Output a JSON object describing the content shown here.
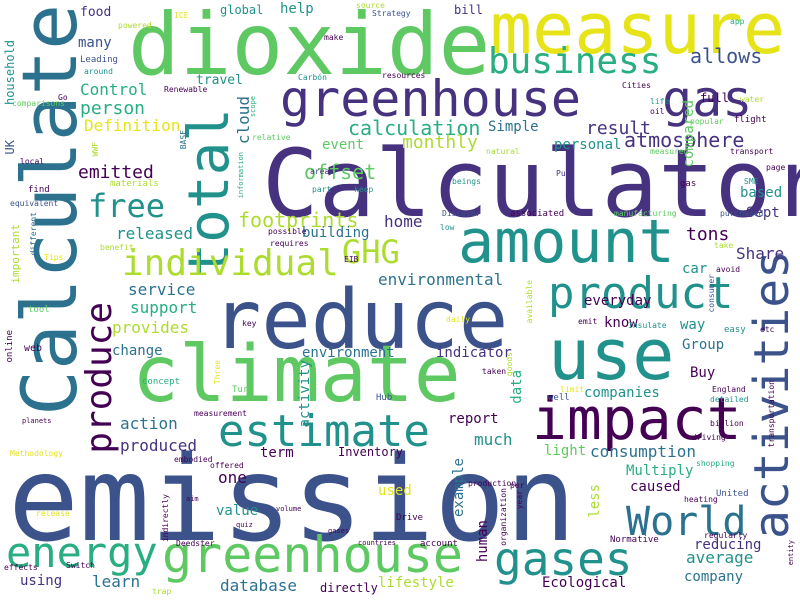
{
  "palette": {
    "navy": "#3b528b",
    "indigo": "#46327e",
    "purple": "#440154",
    "teal": "#2c728e",
    "cyan": "#21918c",
    "sea": "#28ae80",
    "green": "#5ec962",
    "lime": "#addc30",
    "yellow": "#e6e419"
  },
  "words": [
    "emission",
    "Calculator",
    "Calculate",
    "dioxide",
    "measure",
    "reduce",
    "climate",
    "greenhouse",
    "gas",
    "amount",
    "use",
    "impact",
    "total",
    "product",
    "activities",
    "estimate",
    "individual",
    "business",
    "energy",
    "greenhouse",
    "gases",
    "World",
    "produce",
    "GHG",
    "free",
    "calculation",
    "offset",
    "allows",
    "atmosphere",
    "footprints",
    "monthly",
    "result",
    "tons",
    "emitted",
    "person",
    "Control",
    "Definition",
    "service",
    "support",
    "provides",
    "released",
    "home",
    "environmental",
    "Share",
    "everyday",
    "car",
    "personal",
    "compared",
    "Simple",
    "event",
    "based",
    "Sept",
    "cloud",
    "building",
    "know",
    "way",
    "Group",
    "indicator",
    "environment",
    "change",
    "action",
    "produced",
    "term",
    "one",
    "value",
    "used",
    "learn",
    "using",
    "database",
    "lifestyle",
    "company",
    "average",
    "reducing",
    "Multiply",
    "caused",
    "consumption",
    "light",
    "less",
    "much",
    "report",
    "example",
    "human",
    "data",
    "activity",
    "Ecological",
    "companies",
    "Buy",
    "important",
    "UK",
    "household",
    "many",
    "food",
    "help",
    "bill",
    "global",
    "travel",
    "full",
    "Leading",
    "around",
    "powered",
    "ICE",
    "Strategy",
    "source",
    "make",
    "Renewable",
    "Carbón",
    "resources",
    "Cities",
    "life",
    "oil",
    "water",
    "app",
    "comparisons",
    "Go",
    "popular",
    "flight",
    "transport",
    "measured",
    "natural",
    "page",
    "SME",
    "gas",
    "purchased",
    "manufacturing",
    "associated",
    "Discover",
    "beings",
    "Put",
    "keep",
    "part",
    "areas",
    "information",
    "relative",
    "scope",
    "BASF",
    "WWF",
    "local",
    "find",
    "equivalent",
    "different",
    "materials",
    "Tips",
    "benefit",
    "possible",
    "requires",
    "EIB",
    "low",
    "take",
    "avoid",
    "consumer",
    "emit",
    "Insulate",
    "easy",
    "etc",
    "key",
    "tool",
    "online",
    "web",
    "concept",
    "Turn",
    "Three",
    "goods",
    "available",
    "daily",
    "taken",
    "limit",
    "well",
    "England",
    "detailed",
    "billion",
    "driving",
    "transportation",
    "Hub",
    "planets",
    "measurement",
    "Methodology",
    "embodied",
    "offered",
    "shopping",
    "heating",
    "United",
    "Inventory",
    "per",
    "production",
    "organization",
    "year",
    "release",
    "aim",
    "indirectly",
    "quiz",
    "volume",
    "Drive",
    "account",
    "Normative",
    "regularly",
    "effects",
    "Switch",
    "Deedster",
    "countries",
    "directly",
    "trap",
    "entity",
    "gases"
  ]
}
